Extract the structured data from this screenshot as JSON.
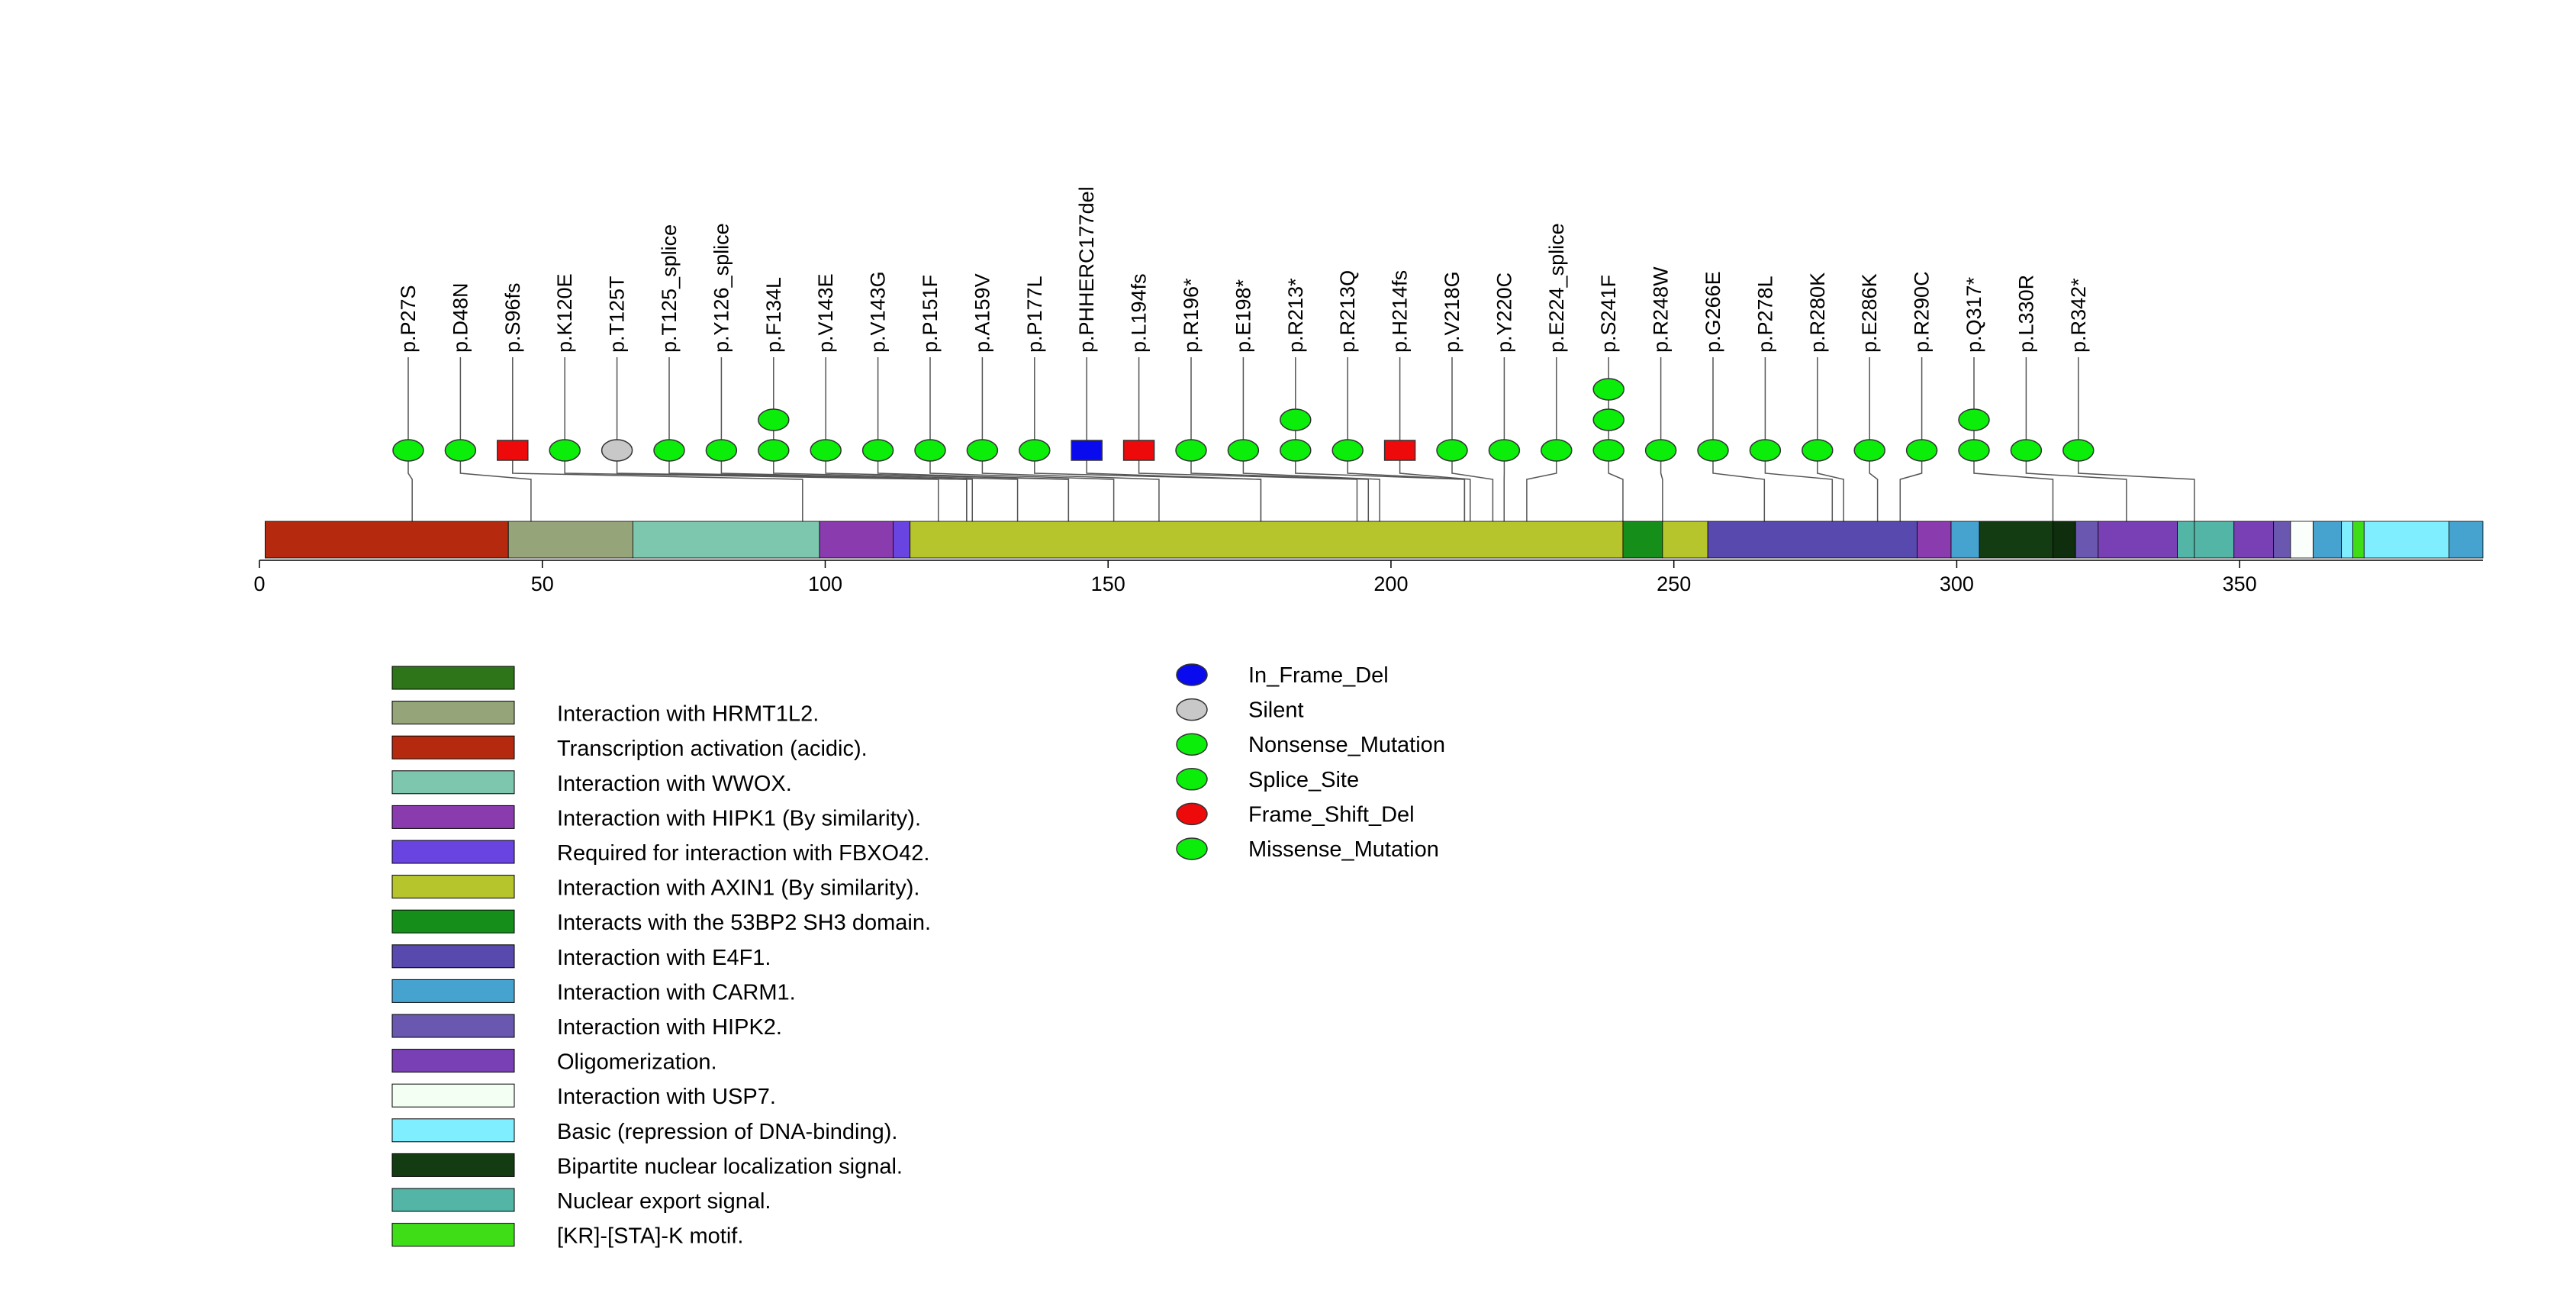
{
  "chart_data": {
    "type": "lollipop",
    "protein_length": 393,
    "axis": {
      "range": [
        0,
        393
      ],
      "ticks": [
        0,
        50,
        100,
        150,
        200,
        250,
        300,
        350
      ]
    },
    "regions": [
      {
        "start": 1,
        "end": 44,
        "color": "#B52A0E"
      },
      {
        "start": 44,
        "end": 66,
        "color": "#95A579"
      },
      {
        "start": 66,
        "end": 99,
        "color": "#7CC7AD"
      },
      {
        "start": 99,
        "end": 112,
        "color": "#8A3CAE"
      },
      {
        "start": 112,
        "end": 115,
        "color": "#6A44E0"
      },
      {
        "start": 115,
        "end": 241,
        "color": "#B5C52B"
      },
      {
        "start": 241,
        "end": 248,
        "color": "#158E1A"
      },
      {
        "start": 248,
        "end": 256,
        "color": "#B5C52B"
      },
      {
        "start": 256,
        "end": 293,
        "color": "#5849AF"
      },
      {
        "start": 293,
        "end": 299,
        "color": "#8A3CAE"
      },
      {
        "start": 299,
        "end": 304,
        "color": "#46A3CF"
      },
      {
        "start": 304,
        "end": 317,
        "color": "#143C12"
      },
      {
        "start": 317,
        "end": 321,
        "color": "#0E2E0E"
      },
      {
        "start": 321,
        "end": 325,
        "color": "#6957B0"
      },
      {
        "start": 325,
        "end": 339,
        "color": "#7940B5"
      },
      {
        "start": 339,
        "end": 342,
        "color": "#52B5A5"
      },
      {
        "start": 342,
        "end": 349,
        "color": "#52B5A5"
      },
      {
        "start": 349,
        "end": 356,
        "color": "#7940B5"
      },
      {
        "start": 356,
        "end": 359,
        "color": "#6957B0"
      },
      {
        "start": 359,
        "end": 363,
        "color": "#FBFFFB"
      },
      {
        "start": 363,
        "end": 368,
        "color": "#46A3CF"
      },
      {
        "start": 368,
        "end": 370,
        "color": "#7FEEFF"
      },
      {
        "start": 370,
        "end": 372,
        "color": "#3EDD18"
      },
      {
        "start": 372,
        "end": 387,
        "color": "#7FEEFF"
      },
      {
        "start": 387,
        "end": 393,
        "color": "#46A3CF"
      }
    ],
    "mutations": [
      {
        "label": "p.P27S",
        "pos": 27,
        "stack": [
          "missense"
        ]
      },
      {
        "label": "p.D48N",
        "pos": 48,
        "stack": [
          "missense"
        ]
      },
      {
        "label": "p.S96fs",
        "pos": 96,
        "stack": [
          "frameshift"
        ]
      },
      {
        "label": "p.K120E",
        "pos": 120,
        "stack": [
          "missense"
        ]
      },
      {
        "label": "p.T125T",
        "pos": 125,
        "stack": [
          "silent"
        ]
      },
      {
        "label": "p.T125_splice",
        "pos": 125,
        "stack": [
          "splice"
        ]
      },
      {
        "label": "p.Y126_splice",
        "pos": 126,
        "stack": [
          "splice"
        ]
      },
      {
        "label": "p.F134L",
        "pos": 134,
        "stack": [
          "missense",
          "missense"
        ]
      },
      {
        "label": "p.V143E",
        "pos": 143,
        "stack": [
          "missense"
        ]
      },
      {
        "label": "p.V143G",
        "pos": 143,
        "stack": [
          "missense"
        ]
      },
      {
        "label": "p.P151F",
        "pos": 151,
        "stack": [
          "missense"
        ]
      },
      {
        "label": "p.A159V",
        "pos": 159,
        "stack": [
          "missense"
        ]
      },
      {
        "label": "p.P177L",
        "pos": 177,
        "stack": [
          "missense"
        ]
      },
      {
        "label": "p.PHHERC177del",
        "pos": 177,
        "stack": [
          "inframe_del"
        ]
      },
      {
        "label": "p.L194fs",
        "pos": 194,
        "stack": [
          "frameshift"
        ]
      },
      {
        "label": "p.R196*",
        "pos": 196,
        "stack": [
          "nonsense"
        ]
      },
      {
        "label": "p.E198*",
        "pos": 198,
        "stack": [
          "nonsense"
        ]
      },
      {
        "label": "p.R213*",
        "pos": 213,
        "stack": [
          "nonsense",
          "nonsense"
        ]
      },
      {
        "label": "p.R213Q",
        "pos": 213,
        "stack": [
          "missense"
        ]
      },
      {
        "label": "p.H214fs",
        "pos": 214,
        "stack": [
          "frameshift"
        ]
      },
      {
        "label": "p.V218G",
        "pos": 218,
        "stack": [
          "missense"
        ]
      },
      {
        "label": "p.Y220C",
        "pos": 220,
        "stack": [
          "missense"
        ]
      },
      {
        "label": "p.E224_splice",
        "pos": 224,
        "stack": [
          "splice"
        ]
      },
      {
        "label": "p.S241F",
        "pos": 241,
        "stack": [
          "missense",
          "missense",
          "missense"
        ]
      },
      {
        "label": "p.R248W",
        "pos": 248,
        "stack": [
          "missense"
        ]
      },
      {
        "label": "p.G266E",
        "pos": 266,
        "stack": [
          "missense"
        ]
      },
      {
        "label": "p.P278L",
        "pos": 278,
        "stack": [
          "missense"
        ]
      },
      {
        "label": "p.R280K",
        "pos": 280,
        "stack": [
          "missense"
        ]
      },
      {
        "label": "p.E286K",
        "pos": 286,
        "stack": [
          "missense"
        ]
      },
      {
        "label": "p.R290C",
        "pos": 290,
        "stack": [
          "missense"
        ]
      },
      {
        "label": "p.Q317*",
        "pos": 317,
        "stack": [
          "nonsense",
          "nonsense"
        ]
      },
      {
        "label": "p.L330R",
        "pos": 330,
        "stack": [
          "missense"
        ]
      },
      {
        "label": "p.R342*",
        "pos": 342,
        "stack": [
          "nonsense"
        ]
      }
    ],
    "domain_legend": [
      {
        "label": "",
        "color": "#2E7519"
      },
      {
        "label": "Interaction with HRMT1L2.",
        "color": "#95A579"
      },
      {
        "label": "Transcription activation (acidic).",
        "color": "#B52A0E"
      },
      {
        "label": "Interaction with WWOX.",
        "color": "#7CC7AD"
      },
      {
        "label": "Interaction with HIPK1 (By similarity).",
        "color": "#8A3CAE"
      },
      {
        "label": "Required for interaction with FBXO42.",
        "color": "#6A44E0"
      },
      {
        "label": "Interaction with AXIN1 (By similarity).",
        "color": "#B5C52B"
      },
      {
        "label": "Interacts with the 53BP2 SH3 domain.",
        "color": "#158E1A"
      },
      {
        "label": "Interaction with E4F1.",
        "color": "#5849AF"
      },
      {
        "label": "Interaction with CARM1.",
        "color": "#46A3CF"
      },
      {
        "label": "Interaction with HIPK2.",
        "color": "#6957B0"
      },
      {
        "label": "Oligomerization.",
        "color": "#7940B5"
      },
      {
        "label": "Interaction with USP7.",
        "color": "#F3FFF3"
      },
      {
        "label": "Basic (repression of DNA-binding).",
        "color": "#7FEEFF"
      },
      {
        "label": "Bipartite nuclear localization signal.",
        "color": "#143C12"
      },
      {
        "label": "Nuclear export signal.",
        "color": "#52B5A5"
      },
      {
        "label": "[KR]-[STA]-K motif.",
        "color": "#3EDD18"
      }
    ],
    "mutation_legend": [
      {
        "key": "inframe_del",
        "label": "In_Frame_Del",
        "color": "#0A0AEE"
      },
      {
        "key": "silent",
        "label": "Silent",
        "color": "#C8C8C8"
      },
      {
        "key": "nonsense",
        "label": "Nonsense_Mutation",
        "color": "#0AEE0A"
      },
      {
        "key": "splice",
        "label": "Splice_Site",
        "color": "#0AEE0A"
      },
      {
        "key": "frameshift",
        "label": "Frame_Shift_Del",
        "color": "#EE0A0A"
      },
      {
        "key": "missense",
        "label": "Missense_Mutation",
        "color": "#0AEE0A"
      }
    ]
  }
}
